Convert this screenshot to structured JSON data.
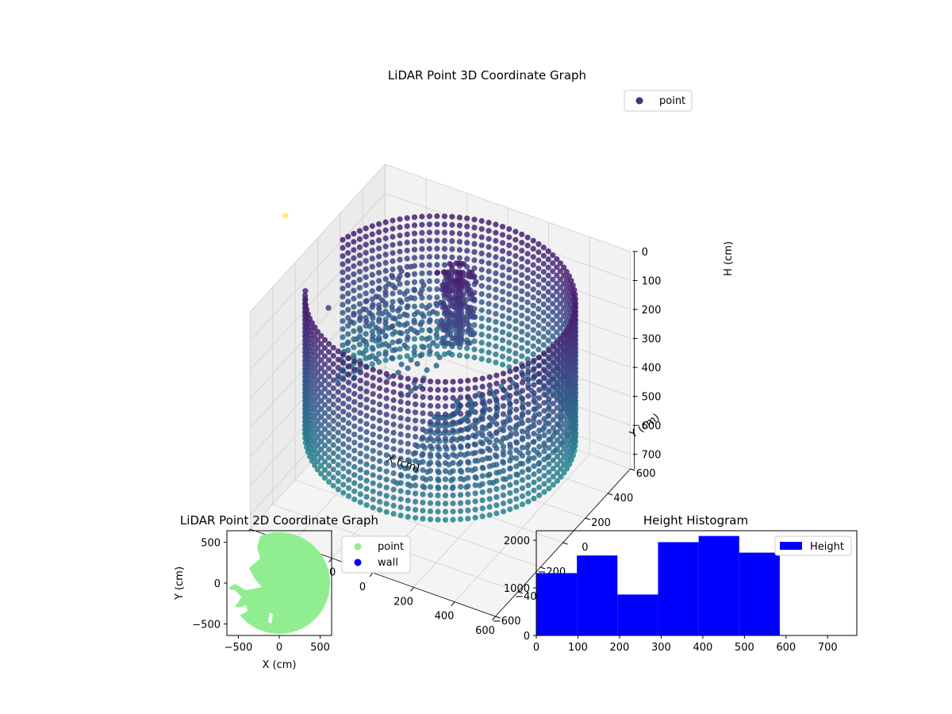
{
  "chart_data": [
    {
      "type": "scatter",
      "title": "LiDAR Point 3D Coordinate Graph",
      "xlabel": "X (cm)",
      "ylabel": "Y (cm)",
      "zlabel": "H (cm)",
      "xlim": [
        -600,
        600
      ],
      "ylim": [
        -600,
        600
      ],
      "zlim": [
        0,
        750
      ],
      "z_inverted": true,
      "x_ticks": [
        "−600",
        "−400",
        "−200",
        "0",
        "200",
        "400",
        "600"
      ],
      "y_ticks": [
        "−600",
        "−400",
        "−200",
        "0",
        "200",
        "400",
        "600"
      ],
      "z_ticks": [
        "0",
        "100",
        "200",
        "300",
        "400",
        "500",
        "600",
        "700"
      ],
      "legend": {
        "entries": [
          "point"
        ],
        "placement": "top-right"
      },
      "colormap": "viridis",
      "grid": true,
      "series": [
        {
          "name": "point",
          "description_points": {
            "wall_radius": 580,
            "wall_height": [
              60,
              560
            ],
            "wall_angle_range_deg": [
              -155,
              165
            ]
          }
        }
      ]
    },
    {
      "type": "scatter",
      "title": "LiDAR Point 2D Coordinate Graph",
      "xlabel": "X (cm)",
      "ylabel": "Y (cm)",
      "xlim": [
        -640,
        640
      ],
      "ylim": [
        -640,
        640
      ],
      "x_ticks": [
        "−500",
        "0",
        "500"
      ],
      "y_ticks": [
        "−500",
        "0",
        "500"
      ],
      "legend": {
        "entries": [
          "point",
          "wall"
        ],
        "placement": "outside-right"
      },
      "grid": false,
      "series": [
        {
          "name": "point",
          "color": "#90ee90",
          "shape": "disk",
          "radius": 620
        },
        {
          "name": "wall",
          "color": "#0000ff",
          "values": []
        }
      ]
    },
    {
      "type": "bar",
      "title": "Height Histogram",
      "xlabel": "",
      "ylabel": "",
      "xlim": [
        0,
        770
      ],
      "ylim": [
        0,
        2200
      ],
      "x_ticks": [
        "0",
        "100",
        "200",
        "300",
        "400",
        "500",
        "600",
        "700"
      ],
      "y_ticks": [
        "0",
        "1000",
        "2000"
      ],
      "legend": {
        "entries": [
          "Height"
        ],
        "placement": "top-right"
      },
      "bar_color": "#0000ff",
      "series": [
        {
          "name": "Height",
          "bins": [
            0,
            97.5,
            195,
            292.5,
            390,
            487.5,
            585
          ],
          "values": [
            1310,
            1680,
            860,
            1960,
            2090,
            1740
          ]
        }
      ]
    }
  ],
  "colors": {
    "point3d_legend": "#46337e",
    "point2d": "#90ee90",
    "wall": "#0000ff",
    "hist": "#0000ff",
    "outlier": "#fde725"
  }
}
